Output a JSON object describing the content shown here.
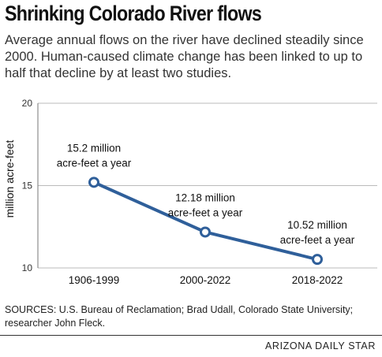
{
  "title": "Shrinking Colorado River flows",
  "subtitle": "Average annual flows on the river have declined steadily since 2000. Human-caused climate change has been linked to up to half that decline by at least two studies.",
  "chart_data": {
    "type": "line",
    "categories": [
      "1906-1999",
      "2000-2022",
      "2018-2022"
    ],
    "series": [
      {
        "values": [
          15.2,
          12.18,
          10.52
        ]
      }
    ],
    "annotations": [
      {
        "line1": "15.2 million",
        "line2": "acre-feet a year"
      },
      {
        "line1": "12.18 million",
        "line2": "acre-feet a year"
      },
      {
        "line1": "10.52 million",
        "line2": "acre-feet a year"
      }
    ],
    "ylabel": "million acre-feet",
    "xlabel": "",
    "ylim": [
      10,
      20
    ],
    "yticks": [
      "20",
      "15",
      "10"
    ],
    "grid": true,
    "colors": {
      "line": "#2f5f9a",
      "grid": "#bbbbbb"
    }
  },
  "sources": "SOURCES: U.S. Bureau of Reclamation; Brad Udall, Colorado State University; researcher John Fleck.",
  "credit": "ARIZONA DAILY STAR"
}
